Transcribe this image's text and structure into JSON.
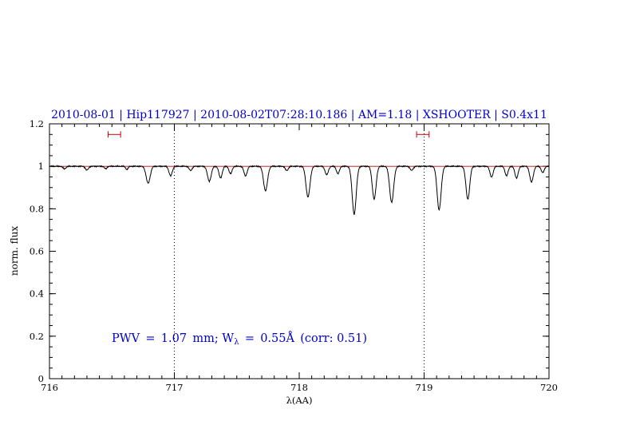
{
  "title": "2010-08-01 | Hip117927 | 2010-08-02T07:28:10.186 | AM=1.18 | XSHOOTER | S0.4x11",
  "annotation": {
    "part1": "PWV = 1.07 mm; W",
    "sub": "λ",
    "part2": " = 0.55Å (corr: 0.51)"
  },
  "colors": {
    "title_blue": "#0000cd",
    "annotation_blue": "#0000cd",
    "continuum_red": "#cc0000",
    "marker_red": "#cc0000",
    "spectrum_black": "#000000",
    "axis_black": "#000000"
  },
  "chart_data": {
    "type": "line",
    "title": "2010-08-01 | Hip117927 | 2010-08-02T07:28:10.186 | AM=1.18 | XSHOOTER | S0.4x11",
    "xlabel": "λ(AA)",
    "ylabel": "norm. flux",
    "xlim": [
      716,
      720
    ],
    "ylim": [
      0,
      1.2
    ],
    "xticks": [
      716,
      717,
      718,
      719,
      720
    ],
    "xtick_labels": [
      "716",
      "717",
      "718",
      "719",
      "720"
    ],
    "x_minor_step": 0.1,
    "yticks": [
      0,
      0.2,
      0.4,
      0.6,
      0.8,
      1.0,
      1.2
    ],
    "ytick_labels": [
      "0",
      "0.2",
      "0.4",
      "0.6",
      "0.8",
      "1",
      "1.2"
    ],
    "y_minor_step": 0.05,
    "grid": "off",
    "dotted_vlines": [
      717,
      719
    ],
    "continuum_level": 1.0,
    "noise_amplitude": 0.0035,
    "error_markers": [
      {
        "x": 716.52,
        "y": 1.15,
        "half_width": 0.05
      },
      {
        "x": 718.99,
        "y": 1.15,
        "half_width": 0.05
      }
    ],
    "absorption_lines": [
      {
        "center": 716.12,
        "depth": 0.012,
        "sigma": 0.012
      },
      {
        "center": 716.3,
        "depth": 0.018,
        "sigma": 0.012
      },
      {
        "center": 716.45,
        "depth": 0.012,
        "sigma": 0.01
      },
      {
        "center": 716.62,
        "depth": 0.015,
        "sigma": 0.01
      },
      {
        "center": 716.79,
        "depth": 0.08,
        "sigma": 0.016
      },
      {
        "center": 716.97,
        "depth": 0.045,
        "sigma": 0.013
      },
      {
        "center": 717.13,
        "depth": 0.02,
        "sigma": 0.012
      },
      {
        "center": 717.28,
        "depth": 0.07,
        "sigma": 0.015
      },
      {
        "center": 717.37,
        "depth": 0.055,
        "sigma": 0.013
      },
      {
        "center": 717.45,
        "depth": 0.035,
        "sigma": 0.012
      },
      {
        "center": 717.57,
        "depth": 0.045,
        "sigma": 0.013
      },
      {
        "center": 717.73,
        "depth": 0.115,
        "sigma": 0.016
      },
      {
        "center": 717.9,
        "depth": 0.02,
        "sigma": 0.012
      },
      {
        "center": 718.07,
        "depth": 0.145,
        "sigma": 0.016
      },
      {
        "center": 718.22,
        "depth": 0.04,
        "sigma": 0.013
      },
      {
        "center": 718.31,
        "depth": 0.035,
        "sigma": 0.012
      },
      {
        "center": 718.44,
        "depth": 0.225,
        "sigma": 0.016
      },
      {
        "center": 718.6,
        "depth": 0.155,
        "sigma": 0.015
      },
      {
        "center": 718.74,
        "depth": 0.17,
        "sigma": 0.016
      },
      {
        "center": 718.9,
        "depth": 0.02,
        "sigma": 0.012
      },
      {
        "center": 719.12,
        "depth": 0.205,
        "sigma": 0.016
      },
      {
        "center": 719.35,
        "depth": 0.155,
        "sigma": 0.015
      },
      {
        "center": 719.54,
        "depth": 0.05,
        "sigma": 0.013
      },
      {
        "center": 719.66,
        "depth": 0.045,
        "sigma": 0.012
      },
      {
        "center": 719.74,
        "depth": 0.055,
        "sigma": 0.013
      },
      {
        "center": 719.86,
        "depth": 0.075,
        "sigma": 0.014
      },
      {
        "center": 719.95,
        "depth": 0.03,
        "sigma": 0.012
      }
    ]
  }
}
